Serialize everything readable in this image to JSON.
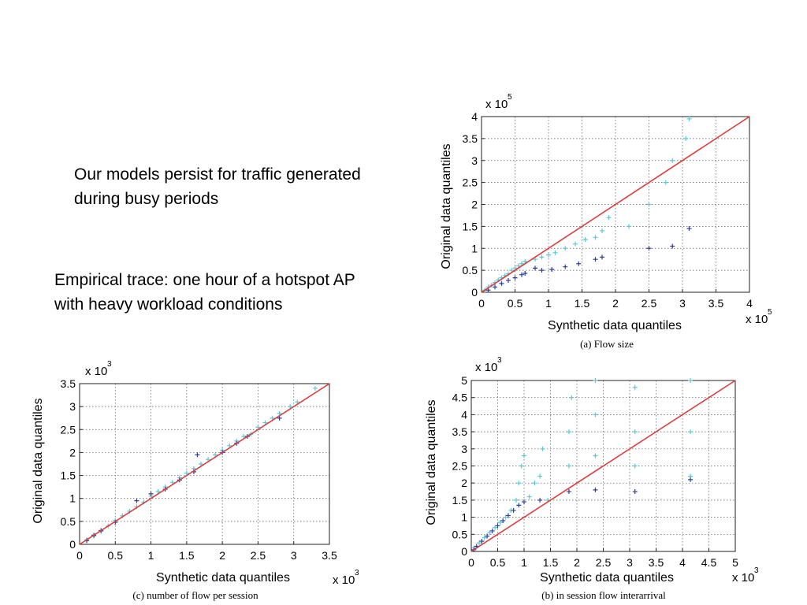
{
  "slide": {
    "text1": [
      "Our models persist for traffic generated",
      "during busy periods"
    ],
    "text2": [
      "Empirical trace: one hour of a hotspot AP",
      "with heavy workload conditions"
    ]
  },
  "chart_data": [
    {
      "id": "a",
      "type": "scatter",
      "caption": "(a) Flow size",
      "xlabel": "Synthetic data quantiles",
      "ylabel": "Original data quantiles",
      "x_multiplier": "x 10",
      "x_exponent": "5",
      "y_multiplier": "x 10",
      "y_exponent": "5",
      "xlim": [
        0,
        4
      ],
      "ylim": [
        0,
        4
      ],
      "xticks": [
        0,
        0.5,
        1,
        1.5,
        2,
        2.5,
        3,
        3.5,
        4
      ],
      "yticks": [
        0,
        0.5,
        1,
        1.5,
        2,
        2.5,
        3,
        3.5,
        4
      ],
      "grid": true,
      "colors": {
        "light": "#5bc8dc",
        "dark": "#2b3f9e",
        "ref": "#e03c3c"
      },
      "reference_line": [
        [
          0,
          0
        ],
        [
          4,
          4
        ]
      ],
      "series": [
        {
          "values": [
            [
              0.05,
              0.05
            ],
            [
              0.1,
              0.12
            ],
            [
              0.15,
              0.16
            ],
            [
              0.2,
              0.22
            ],
            [
              0.25,
              0.28
            ],
            [
              0.3,
              0.33
            ],
            [
              0.35,
              0.38
            ],
            [
              0.4,
              0.42
            ],
            [
              0.45,
              0.5
            ],
            [
              0.5,
              0.55
            ],
            [
              0.55,
              0.6
            ],
            [
              0.6,
              0.65
            ],
            [
              0.65,
              0.7
            ],
            [
              0.8,
              0.75
            ],
            [
              0.9,
              0.8
            ],
            [
              1.0,
              0.85
            ],
            [
              1.1,
              0.9
            ],
            [
              1.25,
              1.0
            ],
            [
              1.4,
              1.1
            ],
            [
              1.55,
              1.2
            ],
            [
              1.7,
              1.25
            ],
            [
              1.8,
              1.4
            ],
            [
              1.9,
              1.7
            ],
            [
              2.2,
              1.5
            ],
            [
              2.5,
              2.0
            ],
            [
              2.75,
              2.5
            ],
            [
              2.85,
              3.0
            ],
            [
              3.05,
              3.5
            ],
            [
              3.1,
              3.95
            ]
          ]
        },
        {
          "values": [
            [
              0.1,
              0.05
            ],
            [
              0.2,
              0.12
            ],
            [
              0.3,
              0.2
            ],
            [
              0.4,
              0.27
            ],
            [
              0.5,
              0.33
            ],
            [
              0.6,
              0.4
            ],
            [
              0.65,
              0.43
            ],
            [
              0.8,
              0.55
            ],
            [
              0.9,
              0.5
            ],
            [
              1.05,
              0.52
            ],
            [
              1.25,
              0.58
            ],
            [
              1.45,
              0.65
            ],
            [
              1.7,
              0.75
            ],
            [
              1.8,
              0.8
            ],
            [
              2.5,
              1.0
            ],
            [
              2.85,
              1.05
            ],
            [
              3.1,
              1.45
            ]
          ]
        }
      ]
    },
    {
      "id": "c",
      "type": "scatter",
      "caption": "(c) number of flow per session",
      "xlabel": "Synthetic data quantiles",
      "ylabel": "Original data quantiles",
      "x_multiplier": "x 10",
      "x_exponent": "3",
      "y_multiplier": "x 10",
      "y_exponent": "3",
      "xlim": [
        0,
        3.5
      ],
      "ylim": [
        0,
        3.5
      ],
      "xticks": [
        0,
        0.5,
        1,
        1.5,
        2,
        2.5,
        3,
        3.5
      ],
      "yticks": [
        0,
        0.5,
        1,
        1.5,
        2,
        2.5,
        3,
        3.5
      ],
      "grid": true,
      "colors": {
        "light": "#5bc8dc",
        "dark": "#2b3f9e",
        "ref": "#e03c3c"
      },
      "reference_line": [
        [
          0,
          0
        ],
        [
          3.5,
          3.5
        ]
      ],
      "series": [
        {
          "values": [
            [
              0.1,
              0.1
            ],
            [
              0.2,
              0.18
            ],
            [
              0.3,
              0.28
            ],
            [
              0.4,
              0.4
            ],
            [
              0.5,
              0.52
            ],
            [
              0.6,
              0.62
            ],
            [
              0.7,
              0.72
            ],
            [
              0.8,
              0.82
            ],
            [
              0.9,
              0.92
            ],
            [
              1.0,
              1.05
            ],
            [
              1.1,
              1.15
            ],
            [
              1.2,
              1.25
            ],
            [
              1.3,
              1.35
            ],
            [
              1.4,
              1.45
            ],
            [
              1.5,
              1.55
            ],
            [
              1.6,
              1.65
            ],
            [
              1.7,
              1.75
            ],
            [
              1.8,
              1.85
            ],
            [
              1.9,
              1.95
            ],
            [
              2.0,
              2.05
            ],
            [
              2.1,
              2.15
            ],
            [
              2.2,
              2.25
            ],
            [
              2.3,
              2.35
            ],
            [
              2.4,
              2.4
            ],
            [
              2.5,
              2.55
            ],
            [
              2.6,
              2.65
            ],
            [
              2.7,
              2.75
            ],
            [
              2.8,
              2.85
            ],
            [
              2.95,
              3.0
            ],
            [
              3.05,
              3.1
            ],
            [
              3.3,
              3.4
            ]
          ]
        },
        {
          "values": [
            [
              0.1,
              0.08
            ],
            [
              0.2,
              0.2
            ],
            [
              0.3,
              0.3
            ],
            [
              0.5,
              0.48
            ],
            [
              0.8,
              0.95
            ],
            [
              1.0,
              1.1
            ],
            [
              1.2,
              1.2
            ],
            [
              1.4,
              1.4
            ],
            [
              1.6,
              1.58
            ],
            [
              1.65,
              1.95
            ],
            [
              2.0,
              2.0
            ],
            [
              2.2,
              2.2
            ],
            [
              2.35,
              2.35
            ],
            [
              2.8,
              2.75
            ]
          ]
        }
      ]
    },
    {
      "id": "b",
      "type": "scatter",
      "caption": "(b) in session flow interarrival",
      "xlabel": "Synthetic data quantiles",
      "ylabel": "Original data quantiles",
      "x_multiplier": "x 10",
      "x_exponent": "3",
      "y_multiplier": "x 10",
      "y_exponent": "3",
      "xlim": [
        0,
        5
      ],
      "ylim": [
        0,
        5
      ],
      "xticks": [
        0,
        0.5,
        1,
        1.5,
        2,
        2.5,
        3,
        3.5,
        4,
        4.5,
        5
      ],
      "yticks": [
        0,
        0.5,
        1,
        1.5,
        2,
        2.5,
        3,
        3.5,
        4,
        4.5,
        5
      ],
      "grid": true,
      "colors": {
        "light": "#5bc8dc",
        "dark": "#2b3f9e",
        "ref": "#e03c3c"
      },
      "reference_line": [
        [
          0,
          0
        ],
        [
          5,
          5
        ]
      ],
      "series": [
        {
          "values": [
            [
              0.05,
              0.1
            ],
            [
              0.15,
              0.25
            ],
            [
              0.25,
              0.4
            ],
            [
              0.35,
              0.55
            ],
            [
              0.45,
              0.7
            ],
            [
              0.55,
              0.85
            ],
            [
              0.65,
              1.0
            ],
            [
              0.75,
              1.2
            ],
            [
              0.85,
              1.5
            ],
            [
              0.9,
              2.0
            ],
            [
              0.95,
              2.5
            ],
            [
              1.0,
              2.8
            ],
            [
              1.1,
              1.6
            ],
            [
              1.2,
              2.0
            ],
            [
              1.3,
              2.2
            ],
            [
              1.35,
              3.0
            ],
            [
              1.45,
              1.5
            ],
            [
              1.85,
              2.5
            ],
            [
              1.85,
              3.5
            ],
            [
              1.9,
              4.5
            ],
            [
              2.35,
              2.8
            ],
            [
              2.35,
              4.0
            ],
            [
              2.35,
              5.0
            ],
            [
              3.1,
              2.5
            ],
            [
              3.1,
              3.5
            ],
            [
              3.1,
              4.8
            ],
            [
              4.15,
              2.2
            ],
            [
              4.15,
              3.5
            ],
            [
              4.15,
              5.0
            ]
          ]
        },
        {
          "values": [
            [
              0.05,
              0.05
            ],
            [
              0.1,
              0.15
            ],
            [
              0.2,
              0.3
            ],
            [
              0.3,
              0.45
            ],
            [
              0.4,
              0.6
            ],
            [
              0.5,
              0.75
            ],
            [
              0.6,
              0.9
            ],
            [
              0.7,
              1.05
            ],
            [
              0.8,
              1.2
            ],
            [
              0.9,
              1.35
            ],
            [
              1.0,
              1.45
            ],
            [
              1.3,
              1.5
            ],
            [
              1.85,
              1.75
            ],
            [
              2.35,
              1.8
            ],
            [
              3.1,
              1.75
            ],
            [
              4.15,
              2.1
            ]
          ]
        }
      ]
    }
  ]
}
